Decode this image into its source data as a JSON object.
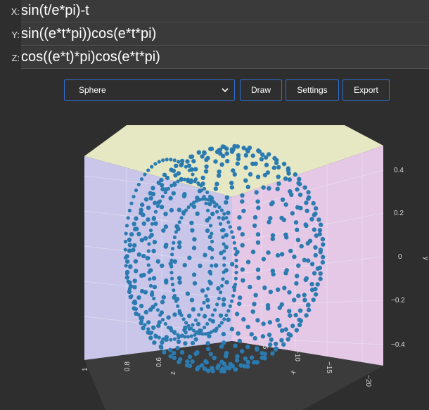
{
  "equations": {
    "x": {
      "label": "X:",
      "value": "sin(t/e*pi)-t"
    },
    "y": {
      "label": "Y:",
      "value": "sin((e*t*pi))cos(e*t*pi)"
    },
    "z": {
      "label": "Z:",
      "value": "cos((e*t)*pi)cos(e*t*pi)"
    }
  },
  "toolbar": {
    "shape_select": {
      "value": "Sphere"
    },
    "draw_label": "Draw",
    "settings_label": "Settings",
    "export_label": "Export"
  },
  "plot": {
    "y_axis": {
      "title": "y",
      "ticks": [
        "0.4",
        "0.2",
        "0",
        "−0.2",
        "−0.4"
      ]
    },
    "z_axis": {
      "title": "z",
      "ticks": [
        "1",
        "0.8",
        "0.6"
      ]
    },
    "x_axis": {
      "title": "x",
      "ticks": [
        "−5",
        "−10",
        "−15",
        "−20"
      ]
    },
    "colors": {
      "marker": "#2b7bb0",
      "back_wall": "#c9c6ea",
      "right_wall": "#e4c8e6",
      "top_wall": "#e6e8c4",
      "floor": "#3b3b3b"
    }
  }
}
